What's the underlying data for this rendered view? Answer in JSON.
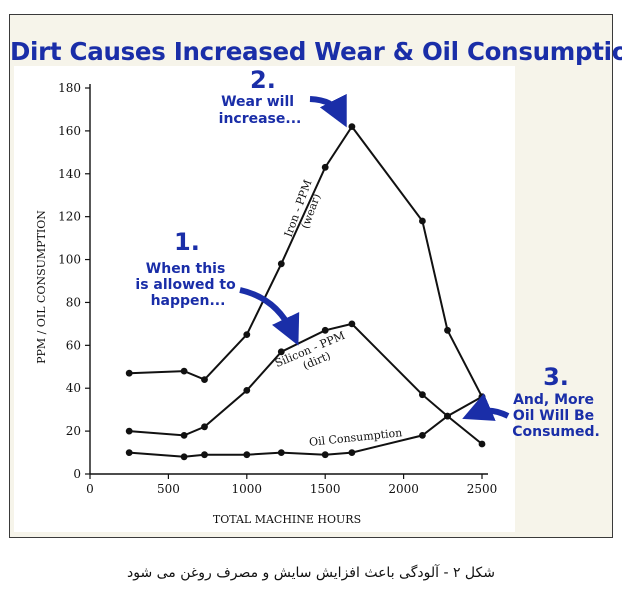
{
  "figure": {
    "title": "Dirt Causes Increased Wear & Oil Consumption",
    "caption": "شکل ۲ - آلودگی باعث افزایش سایش و مصرف روغن می شود"
  },
  "colors": {
    "accent": "#1a2ea8",
    "line": "#111111",
    "background": "#f6f4ea"
  },
  "chart_data": {
    "type": "line",
    "xlabel": "TOTAL MACHINE HOURS",
    "ylabel": "PPM / OIL CONSUMPTION",
    "xlim": [
      0,
      2500
    ],
    "ylim": [
      0,
      180
    ],
    "x_ticks": [
      0,
      500,
      1000,
      1500,
      2000,
      2500
    ],
    "y_ticks": [
      0,
      20,
      40,
      60,
      80,
      100,
      120,
      140,
      160,
      180
    ],
    "grid": false,
    "legend": "none",
    "series": [
      {
        "name": "Iron - PPM (wear)",
        "label_line1": "Iron - PPM",
        "label_line2": "(wear)",
        "points": [
          [
            250,
            47
          ],
          [
            600,
            48
          ],
          [
            730,
            44
          ],
          [
            1000,
            65
          ],
          [
            1220,
            98
          ],
          [
            1500,
            143
          ],
          [
            1670,
            162
          ],
          [
            2120,
            118
          ],
          [
            2280,
            67
          ],
          [
            2500,
            36
          ]
        ]
      },
      {
        "name": "Silicon - PPM (dirt)",
        "label_line1": "Silicon - PPM",
        "label_line2": "(dirt)",
        "points": [
          [
            250,
            20
          ],
          [
            600,
            18
          ],
          [
            730,
            22
          ],
          [
            1000,
            39
          ],
          [
            1220,
            57
          ],
          [
            1500,
            67
          ],
          [
            1670,
            70
          ],
          [
            2120,
            37
          ],
          [
            2280,
            27
          ],
          [
            2500,
            14
          ]
        ]
      },
      {
        "name": "Oil Consumption",
        "label_line1": "Oil Consumption",
        "label_line2": "",
        "points": [
          [
            250,
            10
          ],
          [
            600,
            8
          ],
          [
            730,
            9
          ],
          [
            1000,
            9
          ],
          [
            1220,
            10
          ],
          [
            1500,
            9
          ],
          [
            1670,
            10
          ],
          [
            2120,
            18
          ],
          [
            2280,
            27
          ],
          [
            2500,
            36
          ]
        ]
      }
    ],
    "annotations": [
      {
        "number": "1.",
        "lines": [
          "When this",
          "is allowed to",
          "happen..."
        ]
      },
      {
        "number": "2.",
        "lines": [
          "Wear will",
          "increase..."
        ]
      },
      {
        "number": "3.",
        "lines": [
          "And, More",
          "Oil Will Be",
          "Consumed."
        ]
      }
    ]
  }
}
